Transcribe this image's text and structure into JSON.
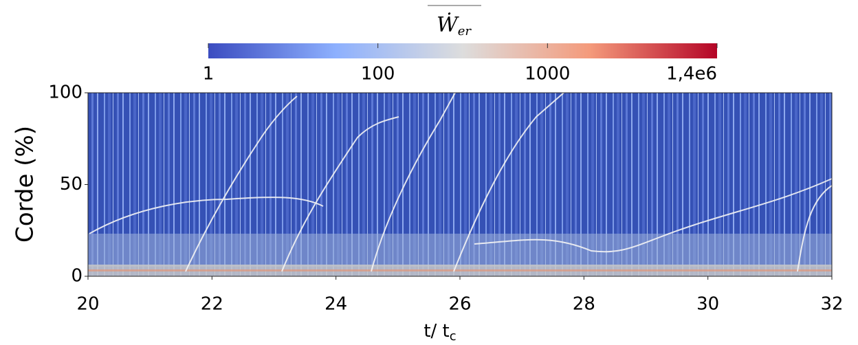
{
  "chart_data": {
    "type": "heatmap",
    "colorbar": {
      "symbol": "Ẇ",
      "subscript": "er",
      "labels": [
        "1",
        "100",
        "1000",
        "1,4e6"
      ],
      "colors": [
        "#3b4cc0",
        "#8db0fe",
        "#dddddd",
        "#f49a7b",
        "#b40426"
      ]
    },
    "xlabel": "t/ t",
    "xlabel_sub": "c",
    "ylabel": "Corde (%)",
    "xlim": [
      20,
      32
    ],
    "xticks": [
      20,
      22,
      24,
      26,
      28,
      30,
      32
    ],
    "ylim": [
      0,
      100
    ],
    "yticks": [
      0,
      50,
      100
    ]
  }
}
